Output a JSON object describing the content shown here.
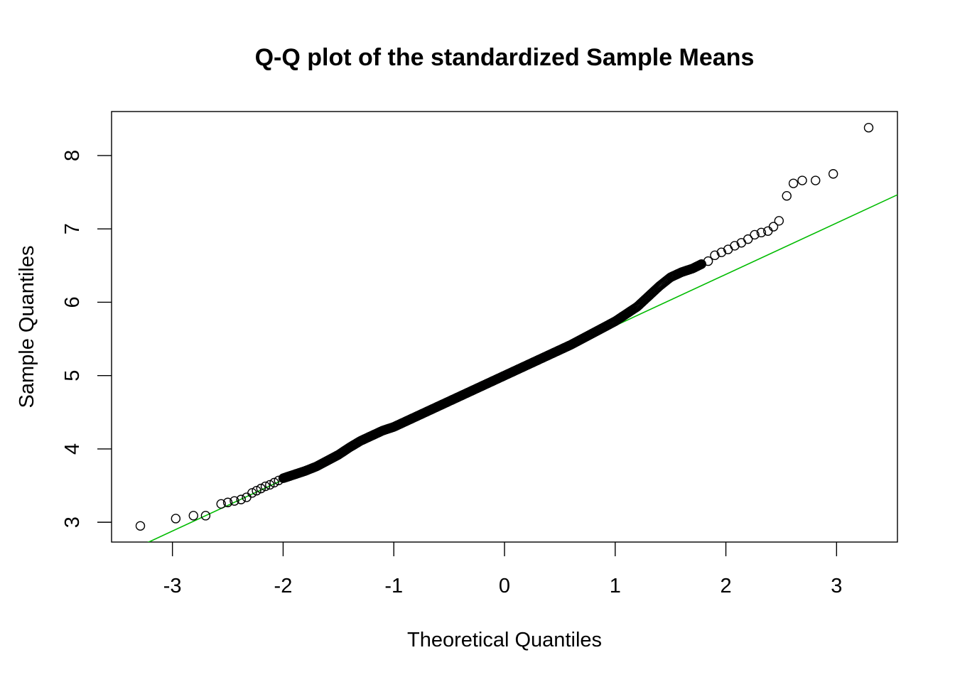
{
  "chart_data": {
    "type": "scatter",
    "title": "Q-Q plot of the standardized Sample Means",
    "xlabel": "Theoretical Quantiles",
    "ylabel": "Sample Quantiles",
    "xlim": [
      -3.55,
      3.55
    ],
    "ylim": [
      2.73,
      8.6
    ],
    "x_ticks": [
      -3,
      -2,
      -1,
      0,
      1,
      2,
      3
    ],
    "x_tick_labels": [
      "-3",
      "-2",
      "-1",
      "0",
      "1",
      "2",
      "3"
    ],
    "y_ticks": [
      3,
      4,
      5,
      6,
      7,
      8
    ],
    "y_tick_labels": [
      "3",
      "4",
      "5",
      "6",
      "7",
      "8"
    ],
    "grid": false,
    "legend": "none",
    "reference_line": {
      "color": "#00bb00",
      "slope": 0.7,
      "intercept": 4.98
    },
    "point_color": "#000000",
    "series": [
      {
        "x": [
          -3.29,
          -2.97,
          -2.81,
          -2.7,
          -2.56,
          -2.5,
          -2.44,
          -2.38,
          -2.33,
          -2.28,
          -2.24,
          -2.2,
          -2.16,
          -2.12,
          -2.08,
          -2.04,
          -2.0,
          -1.94,
          -1.88,
          -1.8,
          -1.7,
          -1.6,
          -1.5,
          -1.4,
          -1.3,
          -1.2,
          -1.1,
          -1.0,
          -0.9,
          -0.8,
          -0.7,
          -0.6,
          -0.5,
          -0.4,
          -0.3,
          -0.2,
          -0.1,
          0.0,
          0.1,
          0.2,
          0.3,
          0.4,
          0.5,
          0.6,
          0.7,
          0.8,
          0.9,
          1.0,
          1.1,
          1.2,
          1.3,
          1.4,
          1.5,
          1.6,
          1.7,
          1.78,
          1.84,
          1.9,
          1.96,
          2.02,
          2.08,
          2.14,
          2.2,
          2.26,
          2.32,
          2.38,
          2.43,
          2.48,
          2.55,
          2.61,
          2.69,
          2.81,
          2.97,
          3.29
        ],
        "y": [
          2.95,
          3.05,
          3.09,
          3.09,
          3.25,
          3.27,
          3.29,
          3.31,
          3.34,
          3.4,
          3.43,
          3.46,
          3.49,
          3.51,
          3.54,
          3.57,
          3.6,
          3.63,
          3.66,
          3.7,
          3.76,
          3.84,
          3.92,
          4.02,
          4.11,
          4.18,
          4.25,
          4.3,
          4.37,
          4.44,
          4.51,
          4.58,
          4.65,
          4.72,
          4.79,
          4.86,
          4.93,
          5.0,
          5.07,
          5.14,
          5.21,
          5.28,
          5.35,
          5.42,
          5.5,
          5.58,
          5.66,
          5.74,
          5.84,
          5.94,
          6.08,
          6.22,
          6.34,
          6.41,
          6.46,
          6.52,
          6.56,
          6.64,
          6.68,
          6.72,
          6.77,
          6.81,
          6.86,
          6.92,
          6.95,
          6.97,
          7.03,
          7.11,
          7.45,
          7.62,
          7.66,
          7.66,
          7.75,
          8.38
        ]
      }
    ]
  }
}
